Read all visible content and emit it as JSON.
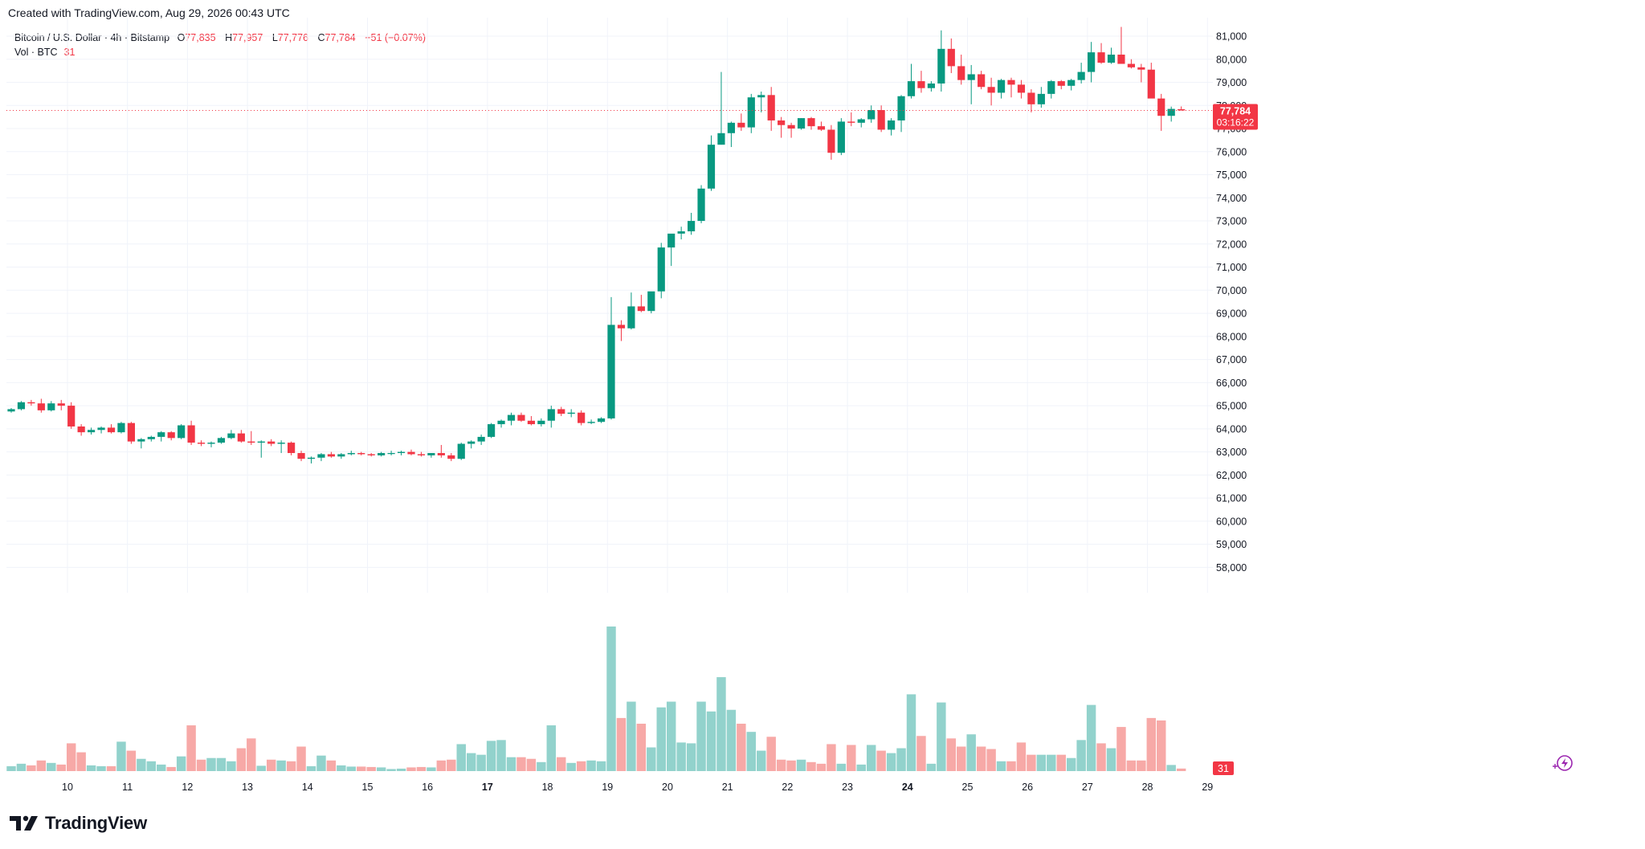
{
  "header": {
    "created_text": "Created with TradingView.com, Aug 29, 2026 00:43 UTC"
  },
  "legend": {
    "symbol": "Bitcoin / U.S. Dollar · 4h · Bitstamp",
    "o_label": "O",
    "o_value": "77,835",
    "h_label": "H",
    "h_value": "77,957",
    "l_label": "L",
    "l_value": "77,776",
    "c_label": "C",
    "c_value": "77,784",
    "change": "−51 (−0.07%)",
    "vol_label": "Vol · BTC",
    "vol_value": "31"
  },
  "price_tag": {
    "price": "77,784",
    "countdown": "03:16:22"
  },
  "vol_tag": "31",
  "brand": {
    "name": "TradingView"
  },
  "colors": {
    "up": "#089981",
    "down": "#f23645",
    "vol_up": "#92d2cc",
    "vol_down": "#f7a9a7",
    "grid": "#f0f3fa",
    "axis_text": "#131722"
  },
  "icons": [
    "tradingview-logo-icon",
    "lightning-icon"
  ],
  "chart_data": {
    "type": "candlestick",
    "timeframe": "4h",
    "y_ticks": [
      58000,
      59000,
      60000,
      61000,
      62000,
      63000,
      64000,
      65000,
      66000,
      67000,
      68000,
      69000,
      70000,
      71000,
      72000,
      73000,
      74000,
      75000,
      76000,
      77000,
      78000,
      79000,
      80000,
      81000
    ],
    "ylim": [
      56900,
      81800
    ],
    "x_labels": [
      {
        "label": "10",
        "day": 10,
        "bold": false
      },
      {
        "label": "11",
        "day": 11,
        "bold": false
      },
      {
        "label": "12",
        "day": 12,
        "bold": false
      },
      {
        "label": "13",
        "day": 13,
        "bold": false
      },
      {
        "label": "14",
        "day": 14,
        "bold": false
      },
      {
        "label": "15",
        "day": 15,
        "bold": false
      },
      {
        "label": "16",
        "day": 16,
        "bold": false
      },
      {
        "label": "17",
        "day": 17,
        "bold": true
      },
      {
        "label": "18",
        "day": 18,
        "bold": false
      },
      {
        "label": "19",
        "day": 19,
        "bold": false
      },
      {
        "label": "20",
        "day": 20,
        "bold": false
      },
      {
        "label": "21",
        "day": 21,
        "bold": false
      },
      {
        "label": "22",
        "day": 22,
        "bold": false
      },
      {
        "label": "23",
        "day": 23,
        "bold": false
      },
      {
        "label": "24",
        "day": 24,
        "bold": true
      },
      {
        "label": "25",
        "day": 25,
        "bold": false
      },
      {
        "label": "26",
        "day": 26,
        "bold": false
      },
      {
        "label": "27",
        "day": 27,
        "bold": false
      },
      {
        "label": "28",
        "day": 28,
        "bold": false
      },
      {
        "label": "29",
        "day": 29,
        "bold": false
      }
    ],
    "last_price": 77784,
    "candles": [
      [
        64750,
        64900,
        64700,
        64850,
        60
      ],
      [
        64850,
        65200,
        64800,
        65150,
        90
      ],
      [
        65150,
        65250,
        65000,
        65100,
        70
      ],
      [
        65100,
        65300,
        64700,
        64800,
        130
      ],
      [
        64800,
        65200,
        64750,
        65100,
        100
      ],
      [
        65100,
        65250,
        64800,
        65000,
        80
      ],
      [
        65000,
        65150,
        64000,
        64100,
        340
      ],
      [
        64100,
        64200,
        63700,
        63850,
        230
      ],
      [
        63850,
        64050,
        63750,
        63950,
        70
      ],
      [
        63950,
        64100,
        63800,
        64050,
        60
      ],
      [
        64050,
        64200,
        63800,
        63850,
        60
      ],
      [
        63850,
        64300,
        63800,
        64250,
        360
      ],
      [
        64250,
        64300,
        63350,
        63450,
        250
      ],
      [
        63450,
        63600,
        63150,
        63550,
        150
      ],
      [
        63550,
        63700,
        63450,
        63650,
        120
      ],
      [
        63650,
        63900,
        63450,
        63850,
        80
      ],
      [
        63850,
        63900,
        63500,
        63600,
        50
      ],
      [
        63600,
        64200,
        63550,
        64150,
        180
      ],
      [
        64150,
        64350,
        63300,
        63400,
        560
      ],
      [
        63400,
        63500,
        63250,
        63350,
        140
      ],
      [
        63350,
        63450,
        63200,
        63400,
        160
      ],
      [
        63400,
        63650,
        63350,
        63600,
        160
      ],
      [
        63600,
        63950,
        63550,
        63800,
        120
      ],
      [
        63800,
        63950,
        63400,
        63450,
        280
      ],
      [
        63450,
        63900,
        63300,
        63400,
        400
      ],
      [
        63400,
        63500,
        62750,
        63450,
        65
      ],
      [
        63450,
        63550,
        63250,
        63350,
        140
      ],
      [
        63350,
        63500,
        62950,
        63400,
        130
      ],
      [
        63400,
        63450,
        62850,
        62950,
        120
      ],
      [
        62950,
        63050,
        62600,
        62700,
        300
      ],
      [
        62700,
        62800,
        62500,
        62750,
        60
      ],
      [
        62750,
        62950,
        62600,
        62900,
        190
      ],
      [
        62900,
        63000,
        62750,
        62800,
        130
      ],
      [
        62800,
        62950,
        62700,
        62900,
        70
      ],
      [
        62900,
        63050,
        62850,
        62950,
        55
      ],
      [
        62950,
        63000,
        62850,
        62900,
        55
      ],
      [
        62900,
        62950,
        62800,
        62850,
        50
      ],
      [
        62850,
        63000,
        62800,
        62950,
        45
      ],
      [
        62950,
        63050,
        62850,
        62950,
        25
      ],
      [
        62950,
        63050,
        62850,
        63000,
        30
      ],
      [
        63000,
        63100,
        62850,
        62900,
        45
      ],
      [
        62900,
        63000,
        62800,
        62850,
        50
      ],
      [
        62850,
        62950,
        62750,
        62950,
        45
      ],
      [
        62950,
        63300,
        62750,
        62850,
        130
      ],
      [
        62850,
        62950,
        62600,
        62700,
        140
      ],
      [
        62700,
        63400,
        62650,
        63350,
        330
      ],
      [
        63350,
        63500,
        63150,
        63450,
        220
      ],
      [
        63450,
        63750,
        63300,
        63650,
        200
      ],
      [
        63650,
        64250,
        63600,
        64200,
        370
      ],
      [
        64200,
        64400,
        64050,
        64350,
        380
      ],
      [
        64350,
        64700,
        64150,
        64600,
        170
      ],
      [
        64600,
        64700,
        64300,
        64350,
        170
      ],
      [
        64350,
        64550,
        64150,
        64200,
        150
      ],
      [
        64200,
        64450,
        64100,
        64350,
        110
      ],
      [
        64350,
        65000,
        64050,
        64850,
        560
      ],
      [
        64850,
        64950,
        64550,
        64650,
        170
      ],
      [
        64650,
        64850,
        64500,
        64700,
        100
      ],
      [
        64700,
        64800,
        64150,
        64250,
        120
      ],
      [
        64250,
        64400,
        64200,
        64300,
        130
      ],
      [
        64300,
        64500,
        64250,
        64450,
        120
      ],
      [
        64450,
        69700,
        64400,
        68500,
        1770
      ],
      [
        68500,
        68700,
        67800,
        68350,
        650
      ],
      [
        68350,
        69900,
        68300,
        69300,
        850
      ],
      [
        69300,
        69800,
        69050,
        69100,
        580
      ],
      [
        69100,
        69800,
        69000,
        69950,
        290
      ],
      [
        69950,
        72050,
        69650,
        71850,
        780
      ],
      [
        71850,
        72300,
        71050,
        72450,
        850
      ],
      [
        72450,
        72750,
        72200,
        72550,
        350
      ],
      [
        72550,
        73350,
        72400,
        73000,
        340
      ],
      [
        73000,
        74550,
        72900,
        74400,
        850
      ],
      [
        74400,
        76700,
        74300,
        76300,
        730
      ],
      [
        76300,
        79450,
        76300,
        76800,
        1150
      ],
      [
        76800,
        77300,
        76200,
        77250,
        750
      ],
      [
        77250,
        77650,
        76900,
        77050,
        580
      ],
      [
        77050,
        78500,
        76800,
        78350,
        480
      ],
      [
        78350,
        78600,
        77700,
        78450,
        250
      ],
      [
        78450,
        78800,
        76900,
        77350,
        420
      ],
      [
        77350,
        77500,
        76600,
        77150,
        140
      ],
      [
        77150,
        77250,
        76600,
        77000,
        130
      ],
      [
        77000,
        77450,
        76950,
        77450,
        140
      ],
      [
        77450,
        77500,
        76950,
        77100,
        110
      ],
      [
        77100,
        77300,
        76900,
        76950,
        90
      ],
      [
        76950,
        77150,
        75650,
        75950,
        330
      ],
      [
        75950,
        77450,
        75850,
        77300,
        90
      ],
      [
        77300,
        77700,
        77100,
        77250,
        320
      ],
      [
        77250,
        77450,
        77050,
        77400,
        80
      ],
      [
        77400,
        78000,
        77250,
        77800,
        320
      ],
      [
        77800,
        78000,
        76850,
        76950,
        250
      ],
      [
        76950,
        77450,
        76700,
        77350,
        220
      ],
      [
        77350,
        78450,
        76850,
        78400,
        280
      ],
      [
        78400,
        79800,
        78300,
        79050,
        940
      ],
      [
        79050,
        79500,
        78550,
        78750,
        430
      ],
      [
        78750,
        79050,
        78600,
        78950,
        90
      ],
      [
        78950,
        81250,
        78600,
        80450,
        840
      ],
      [
        80450,
        80900,
        79400,
        79700,
        400
      ],
      [
        79700,
        80200,
        78900,
        79100,
        300
      ],
      [
        79100,
        79750,
        78050,
        79350,
        450
      ],
      [
        79350,
        79500,
        78700,
        78800,
        300
      ],
      [
        78800,
        79200,
        78000,
        78550,
        270
      ],
      [
        78550,
        79150,
        78300,
        79100,
        120
      ],
      [
        79100,
        79200,
        78350,
        78900,
        120
      ],
      [
        78900,
        79100,
        78300,
        78550,
        350
      ],
      [
        78550,
        78700,
        77700,
        78050,
        200
      ],
      [
        78050,
        78800,
        77900,
        78500,
        200
      ],
      [
        78500,
        79100,
        78300,
        79050,
        200
      ],
      [
        79050,
        79100,
        78700,
        78850,
        200
      ],
      [
        78850,
        79150,
        78650,
        79100,
        160
      ],
      [
        79100,
        79850,
        78950,
        79450,
        380
      ],
      [
        79450,
        80750,
        79000,
        80300,
        810
      ],
      [
        80300,
        80700,
        79800,
        79850,
        340
      ],
      [
        79850,
        80500,
        79800,
        80200,
        280
      ],
      [
        80200,
        81400,
        79800,
        79800,
        540
      ],
      [
        79800,
        80000,
        79600,
        79650,
        130
      ],
      [
        79650,
        79800,
        79000,
        79550,
        130
      ],
      [
        79550,
        79850,
        78350,
        78300,
        650
      ],
      [
        78300,
        78500,
        76900,
        77550,
        620
      ],
      [
        77550,
        77950,
        77300,
        77850,
        75
      ],
      [
        77835,
        77957,
        77776,
        77784,
        31
      ]
    ]
  }
}
